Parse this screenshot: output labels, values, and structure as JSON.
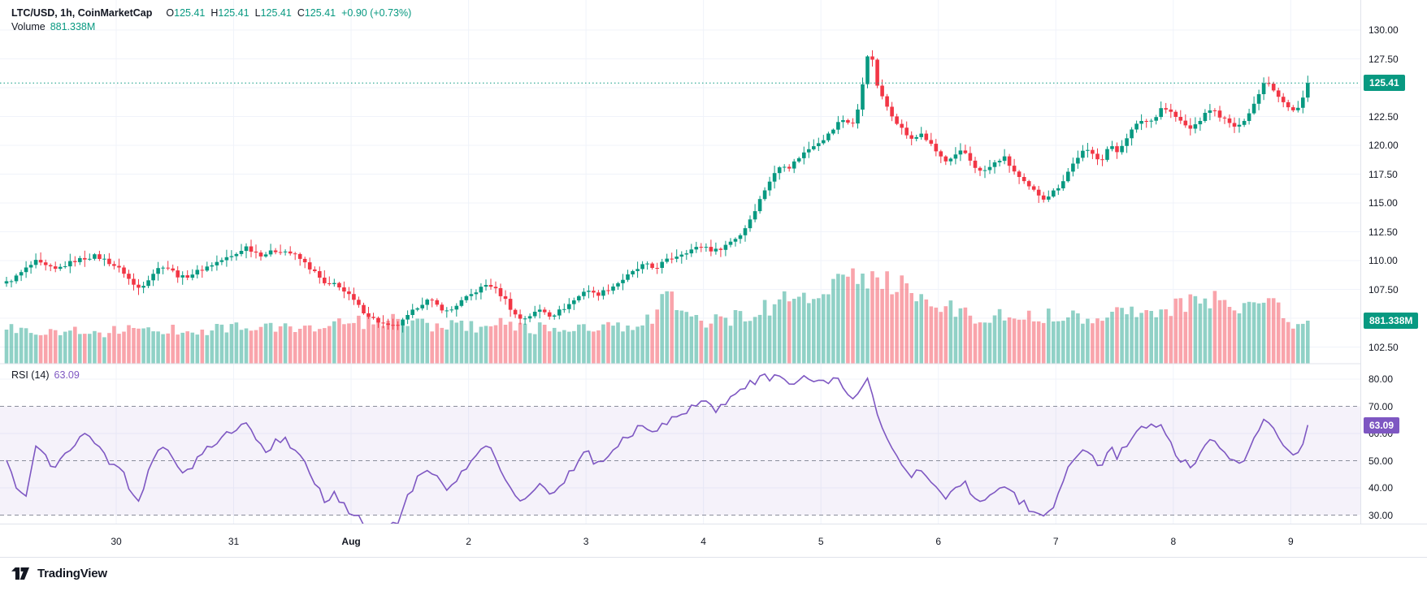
{
  "legend": {
    "title": "LTC/USD, 1h, CoinMarketCap",
    "ohlc": [
      {
        "k": "O",
        "v": "125.41"
      },
      {
        "k": "H",
        "v": "125.41"
      },
      {
        "k": "L",
        "v": "125.41"
      },
      {
        "k": "C",
        "v": "125.41"
      }
    ],
    "change": "+0.90 (+0.73%)",
    "volume_label": "Volume",
    "volume_value": "881.338M"
  },
  "rsi_legend": {
    "label": "RSI (14)",
    "value": "63.09"
  },
  "price_axis": {
    "price_badge": "125.41",
    "volume_badge": "881.338M"
  },
  "rsi_axis": {
    "badge": "63.09"
  },
  "footer": {
    "brand": "TradingView"
  },
  "colors": {
    "up": "#089981",
    "down": "#f23645",
    "volume_up": "rgba(8,153,129,0.45)",
    "volume_down": "rgba(242,54,69,0.45)",
    "rsi": "#7e57c2",
    "rsi_band": "rgba(126,87,194,0.08)",
    "price_badge_bg": "#089981",
    "volume_badge_bg": "#089981",
    "rsi_badge_bg": "#7e57c2"
  },
  "chart_data": {
    "type": "candlestick",
    "symbol": "LTC/USD",
    "interval": "1h",
    "source": "CoinMarketCap",
    "current": {
      "open": 125.41,
      "high": 125.41,
      "low": 125.41,
      "close": 125.41,
      "change": "+0.90",
      "change_pct": "+0.73%"
    },
    "current_volume_m": 881.338,
    "rsi_period": 14,
    "rsi_current": 63.09,
    "price_ticks": [
      "130.00",
      "127.50",
      "125.00",
      "122.50",
      "120.00",
      "117.50",
      "115.00",
      "112.50",
      "110.00",
      "107.50",
      "105.00",
      "102.50"
    ],
    "rsi_ticks": [
      "80.00",
      "70.00",
      "60.00",
      "50.00",
      "40.00",
      "30.00"
    ],
    "days": [
      "30",
      "31",
      "Aug",
      "2",
      "3",
      "4",
      "5",
      "6",
      "7",
      "8",
      "9"
    ],
    "price_axis_range": [
      101.0,
      130.6
    ],
    "rsi_axis_range": [
      27,
      83
    ],
    "rsi_bands": [
      70,
      50,
      30
    ],
    "price_path": [
      [
        8,
        108.1
      ],
      [
        20,
        108.6
      ],
      [
        32,
        109.3
      ],
      [
        44,
        109.9
      ],
      [
        56,
        109.5
      ],
      [
        68,
        109.2
      ],
      [
        80,
        109.6
      ],
      [
        92,
        110.0
      ],
      [
        104,
        110.2
      ],
      [
        116,
        110.4
      ],
      [
        128,
        110.1
      ],
      [
        140,
        109.6
      ],
      [
        152,
        109.0
      ],
      [
        164,
        107.9
      ],
      [
        172,
        107.6
      ],
      [
        182,
        108.4
      ],
      [
        192,
        109.2
      ],
      [
        202,
        109.6
      ],
      [
        212,
        109.1
      ],
      [
        222,
        108.5
      ],
      [
        232,
        108.7
      ],
      [
        244,
        109.1
      ],
      [
        256,
        109.5
      ],
      [
        268,
        109.9
      ],
      [
        278,
        110.2
      ],
      [
        288,
        110.4
      ],
      [
        296,
        110.9
      ],
      [
        303,
        111.2
      ],
      [
        312,
        110.8
      ],
      [
        322,
        110.5
      ],
      [
        332,
        110.7
      ],
      [
        342,
        110.9
      ],
      [
        352,
        110.8
      ],
      [
        362,
        110.5
      ],
      [
        372,
        110.0
      ],
      [
        382,
        109.3
      ],
      [
        390,
        108.8
      ],
      [
        398,
        108.0
      ],
      [
        406,
        107.8
      ],
      [
        414,
        108.1
      ],
      [
        422,
        107.4
      ],
      [
        432,
        106.8
      ],
      [
        444,
        105.8
      ],
      [
        456,
        105.1
      ],
      [
        468,
        104.6
      ],
      [
        480,
        104.2
      ],
      [
        492,
        104.5
      ],
      [
        504,
        105.3
      ],
      [
        516,
        106.2
      ],
      [
        528,
        106.6
      ],
      [
        540,
        106.0
      ],
      [
        552,
        105.5
      ],
      [
        564,
        106.3
      ],
      [
        577,
        106.9
      ],
      [
        589,
        107.5
      ],
      [
        601,
        108.0
      ],
      [
        611,
        107.4
      ],
      [
        622,
        106.6
      ],
      [
        632,
        105.4
      ],
      [
        642,
        104.9
      ],
      [
        654,
        105.3
      ],
      [
        666,
        105.8
      ],
      [
        678,
        105.2
      ],
      [
        690,
        105.7
      ],
      [
        702,
        106.3
      ],
      [
        714,
        107.0
      ],
      [
        721,
        107.6
      ],
      [
        733,
        107.0
      ],
      [
        745,
        107.4
      ],
      [
        757,
        107.9
      ],
      [
        769,
        108.5
      ],
      [
        781,
        109.1
      ],
      [
        793,
        109.7
      ],
      [
        805,
        109.3
      ],
      [
        817,
        109.9
      ],
      [
        829,
        110.3
      ],
      [
        841,
        110.7
      ],
      [
        853,
        111.0
      ],
      [
        866,
        111.3
      ],
      [
        878,
        110.8
      ],
      [
        890,
        111.2
      ],
      [
        902,
        111.8
      ],
      [
        912,
        112.3
      ],
      [
        920,
        113.2
      ],
      [
        928,
        114.3
      ],
      [
        936,
        115.4
      ],
      [
        944,
        116.6
      ],
      [
        952,
        117.4
      ],
      [
        962,
        118.4
      ],
      [
        972,
        118.1
      ],
      [
        982,
        118.9
      ],
      [
        992,
        119.5
      ],
      [
        1002,
        120.1
      ],
      [
        1012,
        120.5
      ],
      [
        1022,
        121.1
      ],
      [
        1032,
        122.0
      ],
      [
        1040,
        122.3
      ],
      [
        1048,
        121.7
      ],
      [
        1054,
        122.5
      ],
      [
        1060,
        124.6
      ],
      [
        1066,
        127.6
      ],
      [
        1069,
        128.1
      ],
      [
        1072,
        127.9
      ],
      [
        1076,
        126.3
      ],
      [
        1081,
        124.8
      ],
      [
        1085,
        124.2
      ],
      [
        1092,
        123.3
      ],
      [
        1100,
        122.4
      ],
      [
        1108,
        121.6
      ],
      [
        1116,
        120.9
      ],
      [
        1124,
        120.3
      ],
      [
        1132,
        121.2
      ],
      [
        1140,
        120.5
      ],
      [
        1148,
        119.8
      ],
      [
        1155,
        119.2
      ],
      [
        1165,
        118.5
      ],
      [
        1175,
        119.0
      ],
      [
        1185,
        119.6
      ],
      [
        1195,
        118.6
      ],
      [
        1205,
        117.7
      ],
      [
        1215,
        117.9
      ],
      [
        1225,
        118.5
      ],
      [
        1235,
        119.0
      ],
      [
        1245,
        118.0
      ],
      [
        1255,
        117.1
      ],
      [
        1265,
        116.4
      ],
      [
        1275,
        115.9
      ],
      [
        1285,
        115.4
      ],
      [
        1295,
        115.9
      ],
      [
        1305,
        116.6
      ],
      [
        1315,
        117.8
      ],
      [
        1325,
        118.9
      ],
      [
        1335,
        119.6
      ],
      [
        1345,
        119.2
      ],
      [
        1355,
        118.7
      ],
      [
        1365,
        120.0
      ],
      [
        1375,
        119.4
      ],
      [
        1385,
        120.6
      ],
      [
        1395,
        121.5
      ],
      [
        1405,
        122.2
      ],
      [
        1415,
        122.0
      ],
      [
        1425,
        122.8
      ],
      [
        1430,
        123.4
      ],
      [
        1442,
        122.8
      ],
      [
        1455,
        121.9
      ],
      [
        1465,
        121.4
      ],
      [
        1478,
        122.3
      ],
      [
        1490,
        123.2
      ],
      [
        1502,
        122.5
      ],
      [
        1514,
        121.8
      ],
      [
        1524,
        121.5
      ],
      [
        1536,
        122.8
      ],
      [
        1548,
        124.2
      ],
      [
        1556,
        125.7
      ],
      [
        1564,
        125.2
      ],
      [
        1572,
        124.4
      ],
      [
        1580,
        123.8
      ],
      [
        1590,
        123.0
      ],
      [
        1600,
        123.3
      ],
      [
        1609,
        125.41
      ]
    ],
    "volume_path_m": [
      [
        8,
        700
      ],
      [
        60,
        680
      ],
      [
        120,
        650
      ],
      [
        180,
        700
      ],
      [
        240,
        690
      ],
      [
        288,
        760
      ],
      [
        340,
        720
      ],
      [
        390,
        750
      ],
      [
        432,
        820
      ],
      [
        470,
        870
      ],
      [
        500,
        860
      ],
      [
        530,
        800
      ],
      [
        560,
        760
      ],
      [
        577,
        740
      ],
      [
        600,
        780
      ],
      [
        625,
        820
      ],
      [
        650,
        740
      ],
      [
        680,
        700
      ],
      [
        700,
        720
      ],
      [
        725,
        800
      ],
      [
        760,
        720
      ],
      [
        790,
        740
      ],
      [
        812,
        1150
      ],
      [
        820,
        1400
      ],
      [
        828,
        1350
      ],
      [
        836,
        1250
      ],
      [
        848,
        900
      ],
      [
        865,
        840
      ],
      [
        880,
        860
      ],
      [
        900,
        920
      ],
      [
        920,
        1000
      ],
      [
        940,
        1150
      ],
      [
        960,
        1250
      ],
      [
        980,
        1320
      ],
      [
        1000,
        1400
      ],
      [
        1020,
        1500
      ],
      [
        1040,
        1620
      ],
      [
        1055,
        1780
      ],
      [
        1068,
        1850
      ],
      [
        1080,
        1800
      ],
      [
        1092,
        1720
      ],
      [
        1105,
        1620
      ],
      [
        1120,
        1500
      ],
      [
        1135,
        1380
      ],
      [
        1150,
        1260
      ],
      [
        1165,
        1150
      ],
      [
        1180,
        1060
      ],
      [
        1200,
        980
      ],
      [
        1220,
        960
      ],
      [
        1240,
        990
      ],
      [
        1260,
        950
      ],
      [
        1280,
        1010
      ],
      [
        1300,
        960
      ],
      [
        1320,
        1000
      ],
      [
        1340,
        980
      ],
      [
        1360,
        1010
      ],
      [
        1380,
        1060
      ],
      [
        1400,
        1110
      ],
      [
        1420,
        1160
      ],
      [
        1440,
        1100
      ],
      [
        1455,
        1180
      ],
      [
        1470,
        1260
      ],
      [
        1485,
        1300
      ],
      [
        1500,
        1290
      ],
      [
        1515,
        1230
      ],
      [
        1530,
        1180
      ],
      [
        1545,
        1200
      ],
      [
        1558,
        1230
      ],
      [
        1570,
        1130
      ],
      [
        1580,
        1000
      ],
      [
        1590,
        880
      ],
      [
        1600,
        820
      ],
      [
        1609,
        881.338
      ]
    ],
    "rsi_path": [
      [
        8,
        50
      ],
      [
        20,
        41
      ],
      [
        32,
        37
      ],
      [
        44,
        57
      ],
      [
        56,
        51
      ],
      [
        68,
        47
      ],
      [
        80,
        53
      ],
      [
        92,
        57
      ],
      [
        104,
        59
      ],
      [
        116,
        56
      ],
      [
        128,
        52
      ],
      [
        140,
        48
      ],
      [
        152,
        45
      ],
      [
        164,
        38
      ],
      [
        172,
        36
      ],
      [
        182,
        45
      ],
      [
        192,
        52
      ],
      [
        202,
        56
      ],
      [
        212,
        50
      ],
      [
        222,
        45
      ],
      [
        232,
        47
      ],
      [
        244,
        51
      ],
      [
        256,
        55
      ],
      [
        268,
        58
      ],
      [
        278,
        60
      ],
      [
        290,
        62
      ],
      [
        303,
        64
      ],
      [
        318,
        57
      ],
      [
        328,
        54
      ],
      [
        338,
        57
      ],
      [
        348,
        58
      ],
      [
        358,
        56
      ],
      [
        368,
        52
      ],
      [
        378,
        47
      ],
      [
        388,
        41
      ],
      [
        396,
        37
      ],
      [
        404,
        35
      ],
      [
        412,
        38
      ],
      [
        420,
        34
      ],
      [
        432,
        31
      ],
      [
        444,
        28
      ],
      [
        456,
        27
      ],
      [
        468,
        26
      ],
      [
        480,
        25.5
      ],
      [
        492,
        29
      ],
      [
        504,
        38
      ],
      [
        516,
        45
      ],
      [
        528,
        48
      ],
      [
        540,
        42
      ],
      [
        552,
        38
      ],
      [
        564,
        45
      ],
      [
        577,
        49
      ],
      [
        589,
        53
      ],
      [
        601,
        56
      ],
      [
        611,
        50
      ],
      [
        622,
        42
      ],
      [
        632,
        37
      ],
      [
        642,
        35
      ],
      [
        654,
        39
      ],
      [
        666,
        42
      ],
      [
        678,
        37
      ],
      [
        690,
        41
      ],
      [
        702,
        46
      ],
      [
        714,
        51
      ],
      [
        721,
        54
      ],
      [
        733,
        49
      ],
      [
        745,
        52
      ],
      [
        757,
        55
      ],
      [
        769,
        58
      ],
      [
        781,
        61
      ],
      [
        793,
        64
      ],
      [
        805,
        60
      ],
      [
        817,
        63
      ],
      [
        829,
        66
      ],
      [
        841,
        68
      ],
      [
        853,
        70
      ],
      [
        866,
        72
      ],
      [
        878,
        68
      ],
      [
        890,
        71
      ],
      [
        902,
        73
      ],
      [
        912,
        75
      ],
      [
        922,
        78
      ],
      [
        932,
        80
      ],
      [
        942,
        81
      ],
      [
        952,
        80
      ],
      [
        962,
        81
      ],
      [
        972,
        77
      ],
      [
        982,
        79
      ],
      [
        992,
        80
      ],
      [
        1002,
        80
      ],
      [
        1012,
        78
      ],
      [
        1022,
        79
      ],
      [
        1032,
        81
      ],
      [
        1042,
        75
      ],
      [
        1050,
        72
      ],
      [
        1058,
        77
      ],
      [
        1066,
        81
      ],
      [
        1071,
        80
      ],
      [
        1076,
        72
      ],
      [
        1081,
        65
      ],
      [
        1092,
        58
      ],
      [
        1100,
        53
      ],
      [
        1108,
        49
      ],
      [
        1116,
        46
      ],
      [
        1124,
        43
      ],
      [
        1132,
        48
      ],
      [
        1140,
        44
      ],
      [
        1148,
        41
      ],
      [
        1155,
        40
      ],
      [
        1165,
        37
      ],
      [
        1175,
        40
      ],
      [
        1185,
        43
      ],
      [
        1195,
        39
      ],
      [
        1205,
        36
      ],
      [
        1215,
        37
      ],
      [
        1225,
        40
      ],
      [
        1235,
        42
      ],
      [
        1245,
        38
      ],
      [
        1255,
        35
      ],
      [
        1265,
        33
      ],
      [
        1275,
        31
      ],
      [
        1285,
        30
      ],
      [
        1295,
        33
      ],
      [
        1305,
        41
      ],
      [
        1315,
        47
      ],
      [
        1325,
        52
      ],
      [
        1335,
        55
      ],
      [
        1345,
        52
      ],
      [
        1355,
        48
      ],
      [
        1365,
        56
      ],
      [
        1375,
        51
      ],
      [
        1385,
        56
      ],
      [
        1395,
        60
      ],
      [
        1405,
        63
      ],
      [
        1415,
        62
      ],
      [
        1425,
        64
      ],
      [
        1435,
        58
      ],
      [
        1445,
        54
      ],
      [
        1455,
        50
      ],
      [
        1465,
        48
      ],
      [
        1478,
        53
      ],
      [
        1490,
        58
      ],
      [
        1502,
        54
      ],
      [
        1514,
        50
      ],
      [
        1524,
        48
      ],
      [
        1536,
        54
      ],
      [
        1548,
        60
      ],
      [
        1556,
        66
      ],
      [
        1564,
        63
      ],
      [
        1572,
        58
      ],
      [
        1580,
        55
      ],
      [
        1590,
        52
      ],
      [
        1600,
        54
      ],
      [
        1609,
        63.09
      ]
    ]
  }
}
